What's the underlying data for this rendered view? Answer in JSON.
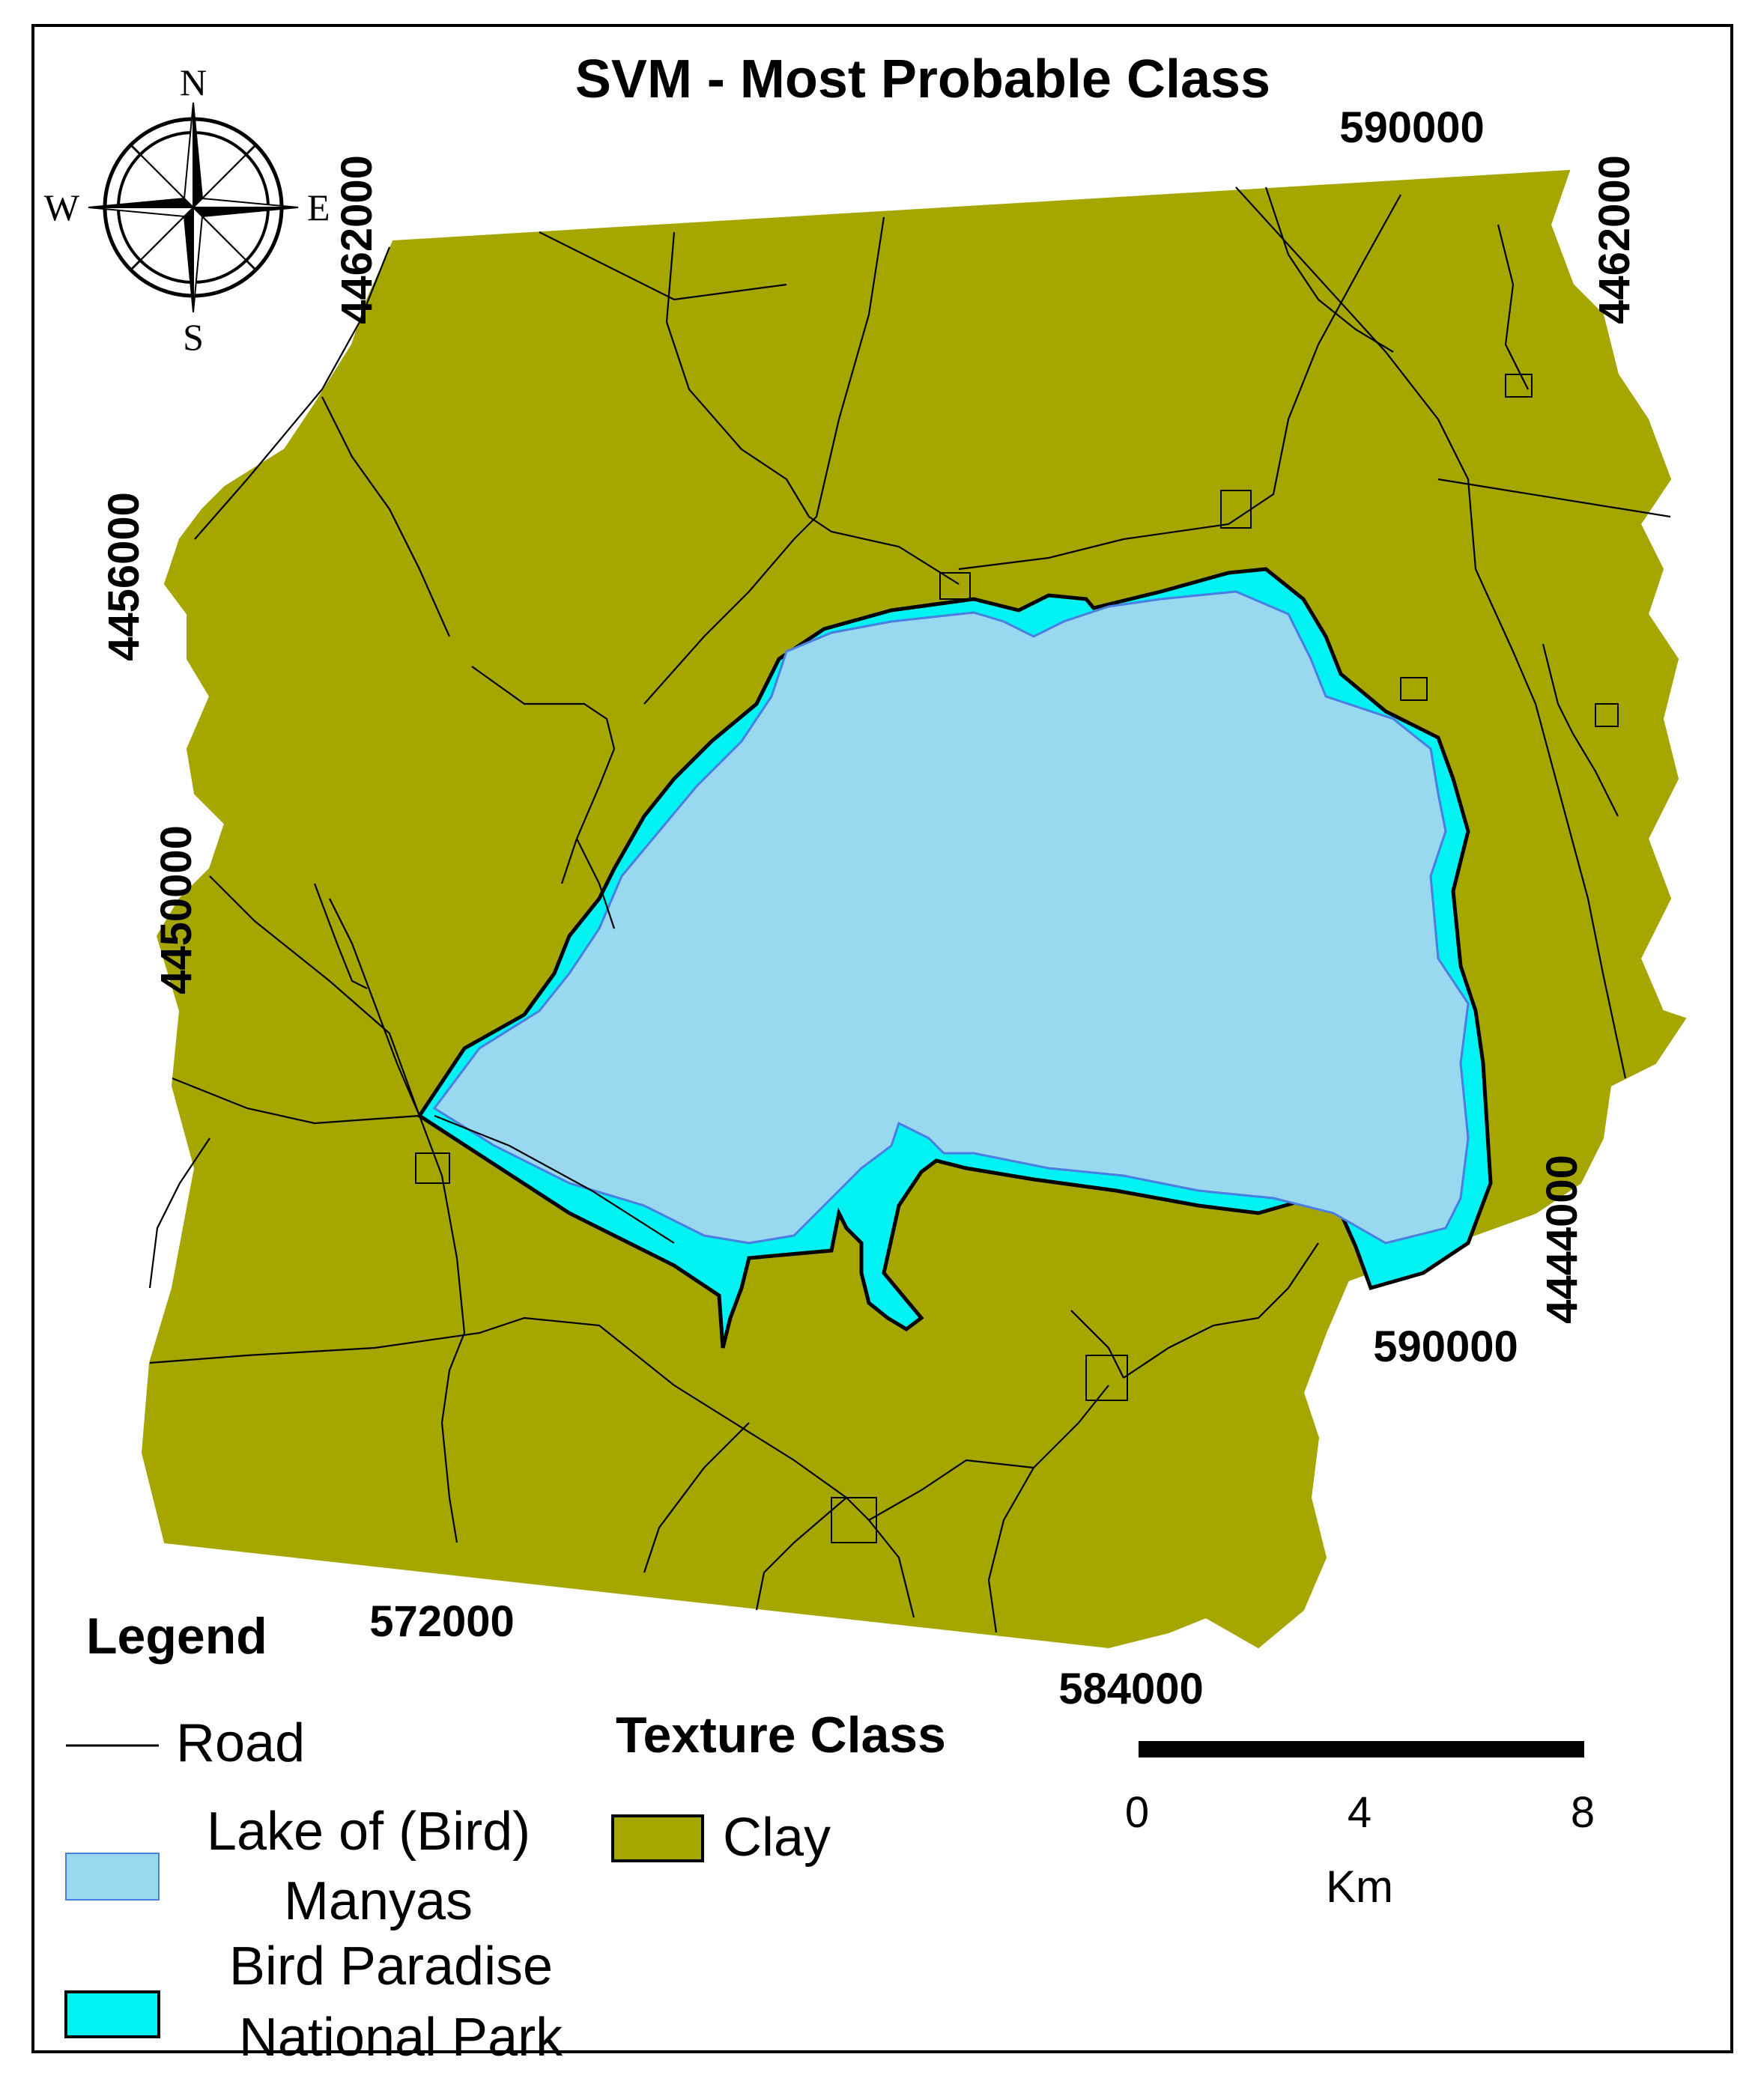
{
  "title": "SVM - Most Probable Class",
  "grid_labels": {
    "top_easting": "590000",
    "left_northing_top": "4462000",
    "right_northing_top": "4462000",
    "left_northing_mid": "4456000",
    "left_northing_low": "4450000",
    "right_northing_low": "4444000",
    "inner_easting_right": "590000",
    "bottom_easting_left": "572000",
    "bottom_easting_right": "584000"
  },
  "compass": {
    "n": "N",
    "s": "S",
    "e": "E",
    "w": "W"
  },
  "legend": {
    "heading": "Legend",
    "road_label": "Road",
    "lake_label_line1": "Lake of (Bird)",
    "lake_label_line2": "Manyas",
    "park_label_line1": "Bird Paradise",
    "park_label_line2": "National Park"
  },
  "texture_class": {
    "heading": "Texture Class",
    "clay_label": "Clay"
  },
  "scale_bar": {
    "tick_0": "0",
    "tick_4": "4",
    "tick_8": "8",
    "unit": "Km"
  },
  "colors": {
    "clay": "#A6A600",
    "lake": "#9AD8F0",
    "park": "#00F2F2",
    "road": "#000000",
    "frame": "#000000"
  }
}
